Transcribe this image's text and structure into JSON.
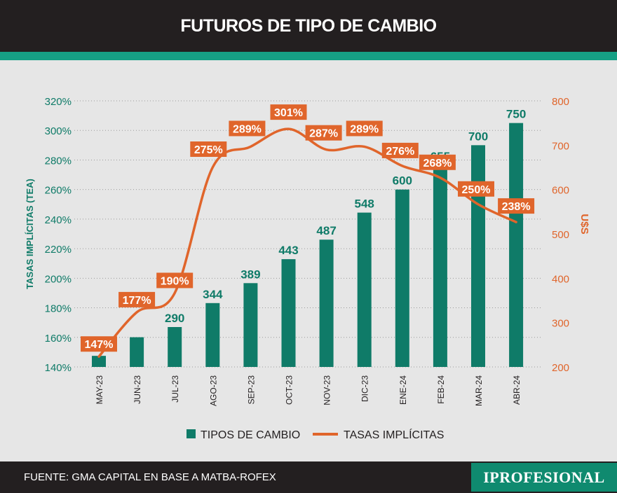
{
  "header": {
    "title": "FUTUROS DE TIPO DE CAMBIO"
  },
  "footer": {
    "source": "FUENTE: GMA CAPITAL EN BASE A MATBA-ROFEX",
    "brand": "IPROFESIONAL"
  },
  "colors": {
    "teal": "#0f7b68",
    "orange": "#e0652b",
    "dark": "#231f20",
    "background": "#e6e6e6"
  },
  "chart_data": {
    "type": "bar+line",
    "title": "FUTUROS DE TIPO DE CAMBIO",
    "categories": [
      "MAY-23",
      "JUN-23",
      "JUL-23",
      "AGO-23",
      "SEP-23",
      "OCT-23",
      "NOV-23",
      "DIC-23",
      "ENE-24",
      "FEB-24",
      "MAR-24",
      "ABR-24"
    ],
    "series": [
      {
        "name": "TIPOS DE CAMBIO",
        "type": "bar",
        "axis": "right",
        "values": [
          225,
          267,
          290,
          344,
          389,
          443,
          487,
          548,
          600,
          655,
          700,
          750
        ],
        "labels": [
          "",
          "",
          "290",
          "344",
          "389",
          "443",
          "487",
          "548",
          "600",
          "655",
          "700",
          "750"
        ]
      },
      {
        "name": "TASAS IMPLÍCITAS",
        "type": "line",
        "axis": "left",
        "values": [
          147,
          177,
          190,
          275,
          289,
          301,
          287,
          289,
          276,
          268,
          250,
          238
        ],
        "labels": [
          "147%",
          "177%",
          "190%",
          "275%",
          "289%",
          "301%",
          "287%",
          "289%",
          "276%",
          "268%",
          "250%",
          "238%"
        ]
      }
    ],
    "left_axis": {
      "label": "TASAS IMPLÍCITAS (TEA)",
      "ticks": [
        "140%",
        "160%",
        "180%",
        "200%",
        "220%",
        "240%",
        "260%",
        "280%",
        "300%",
        "320%"
      ],
      "ylim": [
        140,
        320
      ]
    },
    "right_axis": {
      "label": "U$S",
      "ticks": [
        "200",
        "300",
        "400",
        "500",
        "600",
        "700",
        "800"
      ],
      "ylim": [
        200,
        800
      ]
    },
    "grid": true,
    "legend_position": "bottom"
  }
}
